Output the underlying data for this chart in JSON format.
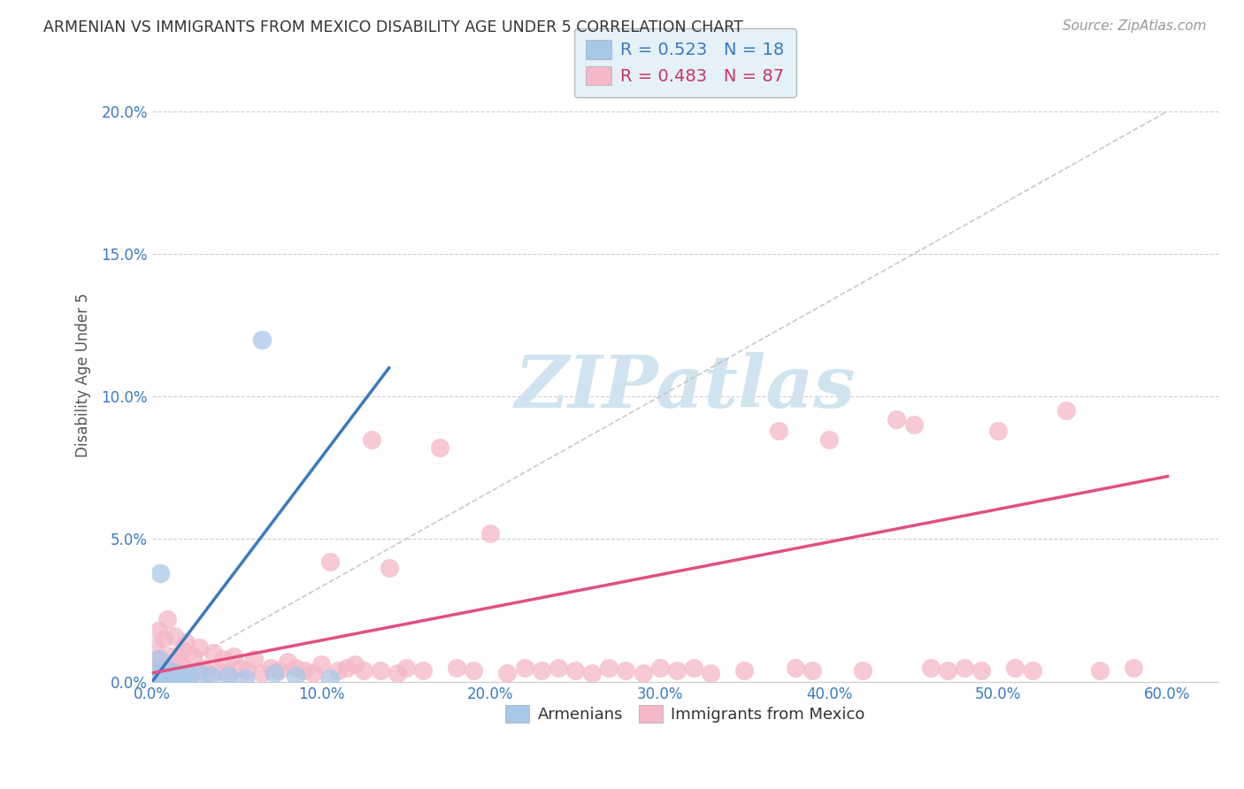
{
  "title": "ARMENIAN VS IMMIGRANTS FROM MEXICO DISABILITY AGE UNDER 5 CORRELATION CHART",
  "source": "Source: ZipAtlas.com",
  "xlabel_vals": [
    0.0,
    10.0,
    20.0,
    30.0,
    40.0,
    50.0,
    60.0
  ],
  "ylabel_vals": [
    0.0,
    5.0,
    10.0,
    15.0,
    20.0
  ],
  "xlim": [
    0.0,
    63.0
  ],
  "ylim": [
    0.0,
    21.5
  ],
  "armenian_R": 0.523,
  "armenian_N": 18,
  "mexico_R": 0.483,
  "mexico_N": 87,
  "armenian_color": "#a8c8e8",
  "mexico_color": "#f4b8c8",
  "armenian_line_color": "#3a7abf",
  "mexico_line_color": "#e05080",
  "gray_dashed_color": "#bbbbbb",
  "watermark_color": "#d0e4f0",
  "background_color": "#ffffff",
  "armenian_x": [
    0.2,
    0.4,
    0.5,
    0.6,
    0.8,
    1.0,
    1.2,
    1.5,
    1.8,
    2.2,
    2.8,
    3.5,
    4.5,
    5.5,
    6.5,
    7.2,
    8.5,
    10.5
  ],
  "armenian_y": [
    0.3,
    0.8,
    3.8,
    0.2,
    0.1,
    0.4,
    0.2,
    0.3,
    0.1,
    0.2,
    0.3,
    0.2,
    0.2,
    0.1,
    12.0,
    0.3,
    0.2,
    0.1
  ],
  "arm_line_x0": 0.0,
  "arm_line_y0": 0.0,
  "arm_line_x1": 14.0,
  "arm_line_y1": 11.0,
  "mex_line_x0": 0.0,
  "mex_line_y0": 0.3,
  "mex_line_x1": 60.0,
  "mex_line_y1": 7.2,
  "mexico_x": [
    0.1,
    0.2,
    0.3,
    0.4,
    0.5,
    0.6,
    0.7,
    0.8,
    0.9,
    1.0,
    1.1,
    1.2,
    1.3,
    1.5,
    1.6,
    1.7,
    1.8,
    1.9,
    2.0,
    2.2,
    2.4,
    2.6,
    2.8,
    3.0,
    3.3,
    3.6,
    3.9,
    4.2,
    4.5,
    4.8,
    5.2,
    5.6,
    6.0,
    6.5,
    7.0,
    7.5,
    8.0,
    8.5,
    9.0,
    9.5,
    10.0,
    10.5,
    11.0,
    11.5,
    12.0,
    12.5,
    13.0,
    13.5,
    14.0,
    14.5,
    15.0,
    16.0,
    17.0,
    18.0,
    19.0,
    20.0,
    21.0,
    22.0,
    23.0,
    24.0,
    25.0,
    26.0,
    27.0,
    28.0,
    29.0,
    30.0,
    31.0,
    32.0,
    33.0,
    35.0,
    37.0,
    38.0,
    39.0,
    40.0,
    42.0,
    44.0,
    45.0,
    46.0,
    47.0,
    48.0,
    49.0,
    50.0,
    51.0,
    52.0,
    54.0,
    56.0,
    58.0
  ],
  "mexico_y": [
    0.5,
    1.2,
    0.4,
    1.8,
    0.8,
    0.3,
    1.5,
    0.5,
    2.2,
    0.4,
    0.9,
    0.3,
    1.6,
    0.4,
    0.8,
    0.3,
    1.1,
    0.5,
    1.4,
    0.3,
    0.9,
    0.4,
    1.2,
    0.5,
    0.3,
    1.0,
    0.4,
    0.8,
    0.3,
    0.9,
    0.5,
    0.4,
    0.8,
    0.3,
    0.5,
    0.4,
    0.7,
    0.5,
    0.4,
    0.3,
    0.6,
    4.2,
    0.4,
    0.5,
    0.6,
    0.4,
    8.5,
    0.4,
    4.0,
    0.3,
    0.5,
    0.4,
    8.2,
    0.5,
    0.4,
    5.2,
    0.3,
    0.5,
    0.4,
    0.5,
    0.4,
    0.3,
    0.5,
    0.4,
    0.3,
    0.5,
    0.4,
    0.5,
    0.3,
    0.4,
    8.8,
    0.5,
    0.4,
    8.5,
    0.4,
    9.2,
    9.0,
    0.5,
    0.4,
    0.5,
    0.4,
    8.8,
    0.5,
    0.4,
    9.5,
    0.4,
    0.5
  ]
}
